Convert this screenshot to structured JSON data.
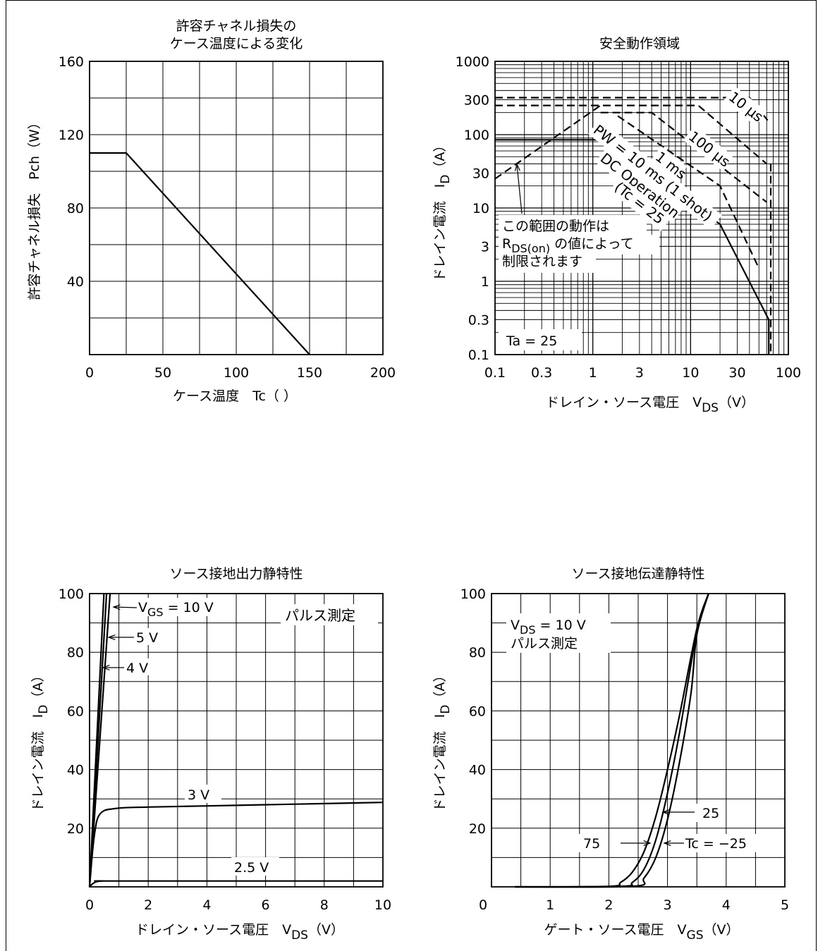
{
  "chart_data": [
    {
      "type": "line",
      "title": [
        "許容チャネル損失の",
        "ケース温度による変化"
      ],
      "xlabel": "ケース温度　Tc（ ）",
      "ylabel": "許容チャネル損失　Pch（W）",
      "xlim": [
        0,
        200
      ],
      "ylim": [
        0,
        160
      ],
      "x_ticks": [
        "0",
        "50",
        "100",
        "150",
        "200"
      ],
      "y_ticks": [
        "40",
        "80",
        "120",
        "160"
      ],
      "grid": true,
      "series": [
        {
          "x": [
            0,
            25,
            150
          ],
          "y": [
            110,
            110,
            0
          ]
        }
      ]
    },
    {
      "type": "line",
      "title": "安全動作領域",
      "xlabel": "ドレイン・ソース電圧　V",
      "xlabel_sub": "DS",
      "xlabel_unit": "（V）",
      "ylabel": "ドレイン電流　I",
      "ylabel_sub": "D",
      "ylabel_unit": "（A）",
      "xscale": "log",
      "yscale": "log",
      "xlim": [
        0.1,
        100
      ],
      "ylim": [
        0.1,
        1000
      ],
      "x_ticks": [
        "0.1",
        "0.3",
        "1",
        "3",
        "10",
        "30",
        "100"
      ],
      "y_ticks": [
        "0.1",
        "0.3",
        "1",
        "3",
        "10",
        "30",
        "100",
        "300",
        "1000"
      ],
      "grid": true,
      "labels": {
        "t10us": "10 μs",
        "t100us": "100 μs",
        "t1ms": "1 ms",
        "t10ms": "PW = 10 ms (1 shot)",
        "dc1": "DC Operation",
        "dc2": "(Tc = 25",
        "rds1": "この範囲の動作は",
        "rds2a": "R",
        "rds2b": "DS(on)",
        "rds2c": " の値によって",
        "rds3": "制限されます",
        "ta": "Ta = 25"
      },
      "series": [
        {
          "style": "dashed",
          "x": [
            0.1,
            1.2
          ],
          "y": [
            25,
            250
          ]
        },
        {
          "style": "dashed",
          "x": [
            0.1,
            40,
            63
          ],
          "y": [
            320,
            320,
            150
          ]
        },
        {
          "style": "dashed",
          "x": [
            0.1,
            12,
            60
          ],
          "y": [
            250,
            250,
            40
          ]
        },
        {
          "style": "dashed",
          "x": [
            1.2,
            4,
            60
          ],
          "y": [
            200,
            200,
            12
          ]
        },
        {
          "style": "dashed",
          "x": [
            1.8,
            20,
            50
          ],
          "y": [
            180,
            20,
            1.5
          ]
        },
        {
          "style": "solid",
          "x": [
            0.1,
            1.3,
            20,
            63
          ],
          "y": [
            85,
            85,
            6,
            0.3
          ]
        },
        {
          "style": "solid",
          "x": [
            63,
            63
          ],
          "y": [
            0.3,
            0.1
          ]
        },
        {
          "style": "dashed",
          "x": [
            66,
            66
          ],
          "y": [
            40,
            0.1
          ]
        }
      ]
    },
    {
      "type": "line",
      "title": "ソース接地出力静特性",
      "xlabel": "ドレイン・ソース電圧　V",
      "xlabel_sub": "DS",
      "xlabel_unit": "（V）",
      "ylabel": "ドレイン電流　I",
      "ylabel_sub": "D",
      "ylabel_unit": "（A）",
      "xlim": [
        0,
        10
      ],
      "ylim": [
        0,
        100
      ],
      "x_ticks": [
        "0",
        "2",
        "4",
        "6",
        "8",
        "10"
      ],
      "y_ticks": [
        "20",
        "40",
        "60",
        "80",
        "100"
      ],
      "grid": true,
      "labels": {
        "vgs_a": "V",
        "vgs_sub": "GS",
        "vgs_b": " = 10 V",
        "v5": "5 V",
        "v4": "4 V",
        "v3": "3 V",
        "v25": "2.5 V",
        "pulse": "パルス測定"
      },
      "series": [
        {
          "name": "10 V",
          "x": [
            0,
            0.49
          ],
          "y": [
            0,
            100
          ]
        },
        {
          "name": "5 V",
          "x": [
            0,
            0.58
          ],
          "y": [
            0,
            100
          ]
        },
        {
          "name": "4 V",
          "x": [
            0,
            0.7
          ],
          "y": [
            0,
            100
          ]
        },
        {
          "name": "3 V",
          "x": [
            0,
            0.1,
            0.2,
            0.3,
            0.5,
            0.8,
            1.2,
            2,
            4,
            6,
            8,
            10
          ],
          "y": [
            0,
            12,
            20,
            24,
            26,
            26.6,
            27,
            27.2,
            27.6,
            28,
            28.4,
            28.8
          ]
        },
        {
          "name": "2.5 V",
          "x": [
            0,
            0.1,
            0.2,
            0.3,
            0.5,
            1,
            10
          ],
          "y": [
            0,
            1,
            1.6,
            1.9,
            2,
            2,
            2
          ]
        }
      ]
    },
    {
      "type": "line",
      "title": "ソース接地伝達静特性",
      "xlabel": "ゲート・ソース電圧　V",
      "xlabel_sub": "GS",
      "xlabel_unit": "（V）",
      "ylabel": "ドレイン電流　I",
      "ylabel_sub": "D",
      "ylabel_unit": "（A）",
      "xlim": [
        0,
        5
      ],
      "ylim": [
        0,
        100
      ],
      "x_ticks": [
        "0",
        "1",
        "2",
        "3",
        "4",
        "5"
      ],
      "y_ticks": [
        "20",
        "40",
        "60",
        "80",
        "100"
      ],
      "grid": true,
      "labels": {
        "vds_a": "V",
        "vds_sub": "DS",
        "vds_b": " = 10 V",
        "pulse": "パルス測定",
        "t25": "25",
        "t75": "75",
        "tm25": "Tc = −25"
      },
      "series": [
        {
          "name": "75",
          "x": [
            0.4,
            2.0,
            2.2,
            2.4,
            2.6,
            2.8,
            3.0,
            3.2,
            3.5,
            3.7
          ],
          "y": [
            0,
            0.2,
            1.5,
            5,
            12,
            24,
            40,
            58,
            88,
            100
          ]
        },
        {
          "name": "25",
          "x": [
            0.4,
            2.2,
            2.4,
            2.6,
            2.8,
            3.0,
            3.2,
            3.5,
            3.7
          ],
          "y": [
            0,
            0.2,
            1.5,
            6,
            16,
            32,
            52,
            87,
            100
          ]
        },
        {
          "name": "−25",
          "x": [
            0.4,
            2.4,
            2.6,
            2.8,
            3.0,
            3.2,
            3.4,
            3.5,
            3.7
          ],
          "y": [
            0,
            0.2,
            3,
            10,
            23,
            42,
            66,
            86,
            100
          ]
        }
      ]
    }
  ]
}
